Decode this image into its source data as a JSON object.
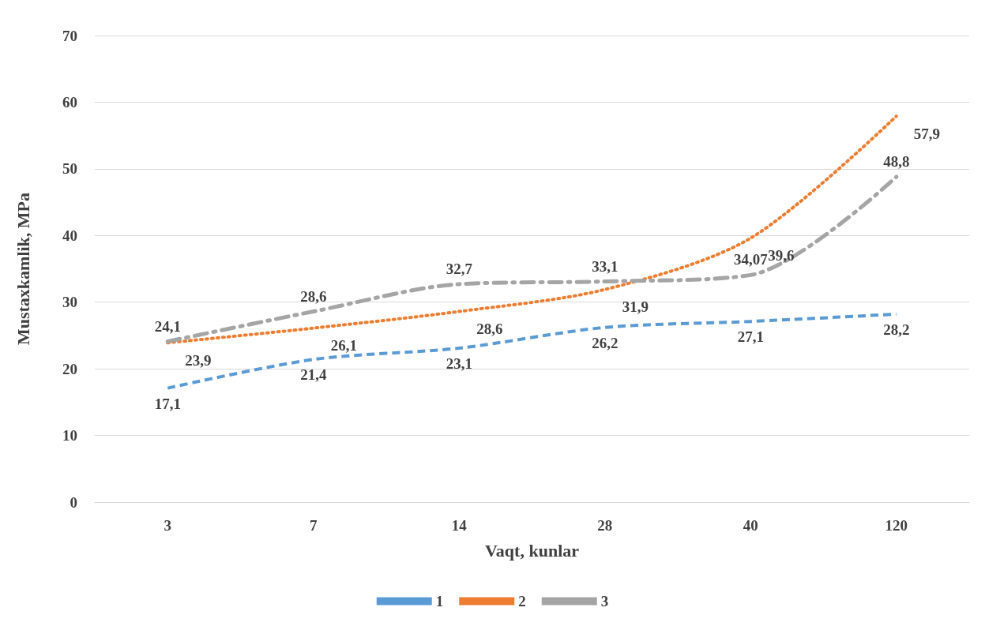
{
  "chart_data": {
    "type": "line",
    "xlabel": "Vaqt, kunlar",
    "ylabel": "Mustaxkamlik, MPa",
    "categories": [
      "3",
      "7",
      "14",
      "28",
      "40",
      "120"
    ],
    "series": [
      {
        "name": "1",
        "color": "#5b9bd5",
        "line_style": "dashed",
        "values": [
          17.1,
          21.4,
          23.1,
          26.2,
          27.1,
          28.2
        ],
        "value_labels": [
          "17,1",
          "21,4",
          "23,1",
          "26,2",
          "27,1",
          "28,2"
        ]
      },
      {
        "name": "2",
        "color": "#ed7d31",
        "line_style": "dotted",
        "values": [
          23.9,
          26.1,
          28.6,
          31.9,
          39.6,
          57.9
        ],
        "value_labels": [
          "23,9",
          "26,1",
          "28,6",
          "31,9",
          "39,6",
          "57,9"
        ]
      },
      {
        "name": "3",
        "color": "#a5a5a5",
        "line_style": "dashdot",
        "values": [
          24.1,
          28.6,
          32.7,
          33.1,
          34.07,
          48.8
        ],
        "value_labels": [
          "24,1",
          "28,6",
          "32,7",
          "33,1",
          "34,07",
          "48,8"
        ]
      }
    ],
    "ylim": [
      0,
      70
    ],
    "yticks": [
      0,
      10,
      20,
      30,
      40,
      50,
      60,
      70
    ],
    "grid": "y",
    "legend": "bottom",
    "marker": "none"
  }
}
